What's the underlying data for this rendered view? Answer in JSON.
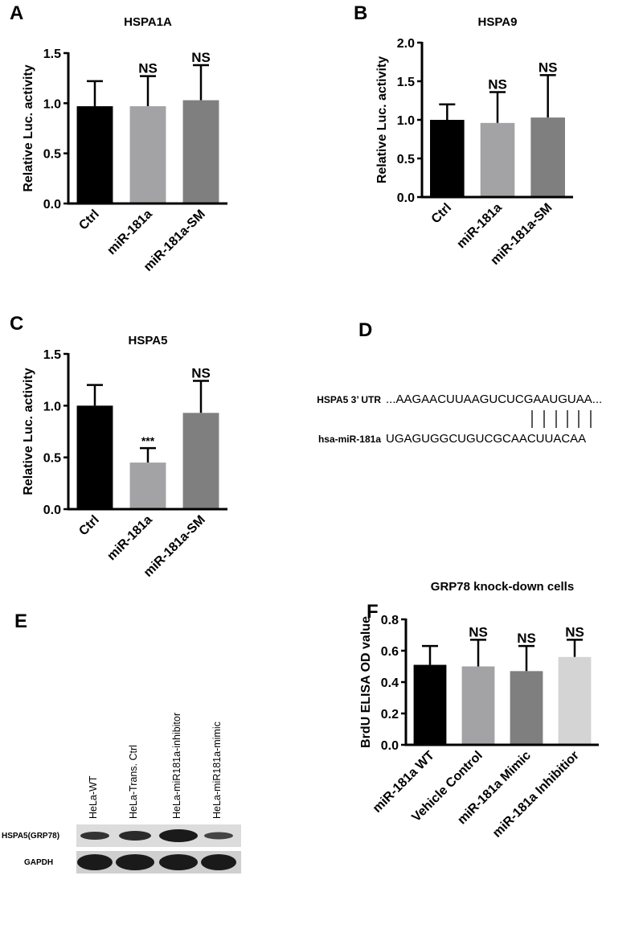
{
  "chart_data": [
    {
      "type": "bar",
      "panel": "A",
      "title": "HSPA1A",
      "ylabel": "Relative Luc. activity",
      "categories": [
        "Ctrl",
        "miR-181a",
        "miR-181a-SM"
      ],
      "values": [
        0.97,
        0.97,
        1.03
      ],
      "errors": [
        0.25,
        0.3,
        0.35
      ],
      "annotations": [
        null,
        "NS",
        "NS"
      ],
      "colors": [
        "#000000",
        "#a3a3a5",
        "#7f7f7f"
      ],
      "ylim": [
        0,
        1.5
      ],
      "yticks": [
        {
          "value": 0,
          "label": "0.0"
        },
        {
          "value": 0.5,
          "label": "0.5"
        },
        {
          "value": 1,
          "label": "1.0"
        },
        {
          "value": 1.5,
          "label": "1.5"
        }
      ]
    },
    {
      "type": "bar",
      "panel": "B",
      "title": "HSPA9",
      "ylabel": "Relative Luc. activity",
      "categories": [
        "Ctrl",
        "miR-181a",
        "miR-181a-SM"
      ],
      "values": [
        1.0,
        0.96,
        1.03
      ],
      "errors": [
        0.2,
        0.4,
        0.55
      ],
      "annotations": [
        null,
        "NS",
        "NS"
      ],
      "colors": [
        "#000000",
        "#a3a3a5",
        "#7f7f7f"
      ],
      "ylim": [
        0,
        2
      ],
      "yticks": [
        {
          "value": 0,
          "label": "0.0"
        },
        {
          "value": 0.5,
          "label": "0.5"
        },
        {
          "value": 1,
          "label": "1.0"
        },
        {
          "value": 1.5,
          "label": "1.5"
        },
        {
          "value": 2,
          "label": "2.0"
        }
      ]
    },
    {
      "type": "bar",
      "panel": "C",
      "title": "HSPA5",
      "ylabel": "Relative Luc. activity",
      "categories": [
        "Ctrl",
        "miR-181a",
        "miR-181a-SM"
      ],
      "values": [
        1.0,
        0.45,
        0.93
      ],
      "errors": [
        0.2,
        0.14,
        0.31
      ],
      "annotations": [
        null,
        "***",
        "NS"
      ],
      "colors": [
        "#000000",
        "#a3a3a5",
        "#7f7f7f"
      ],
      "ylim": [
        0,
        1.5
      ],
      "yticks": [
        {
          "value": 0,
          "label": "0.0"
        },
        {
          "value": 0.5,
          "label": "0.5"
        },
        {
          "value": 1,
          "label": "1.0"
        },
        {
          "value": 1.5,
          "label": "1.5"
        }
      ]
    },
    {
      "type": "bar",
      "panel": "F",
      "title": "GRP78 knock-down cells",
      "ylabel": "BrdU ELISA OD value",
      "categories": [
        "miR-181a WT",
        "Vehicle Control",
        "miR-181a Mimic",
        "miR-181a Inhibitior"
      ],
      "values": [
        0.51,
        0.5,
        0.47,
        0.56
      ],
      "errors": [
        0.12,
        0.17,
        0.16,
        0.11
      ],
      "annotations": [
        null,
        "NS",
        "NS",
        "NS"
      ],
      "colors": [
        "#000000",
        "#a3a3a5",
        "#7f7f7f",
        "#d4d4d4"
      ],
      "ylim": [
        0,
        0.8
      ],
      "yticks": [
        {
          "value": 0,
          "label": "0.0"
        },
        {
          "value": 0.2,
          "label": "0.2"
        },
        {
          "value": 0.4,
          "label": "0.4"
        },
        {
          "value": 0.6,
          "label": "0.6"
        },
        {
          "value": 0.8,
          "label": "0.8"
        }
      ]
    }
  ],
  "alignment": {
    "panel": "D",
    "rows": [
      {
        "label": "HSPA5 3’ UTR",
        "sequence": "...AAGAACUUAAGUCUCGAAUGUAA..."
      },
      {
        "label": "hsa-miR-181a",
        "sequence": "UGAGUGGCUGUCGCAACUUACAA"
      }
    ]
  },
  "blot": {
    "panel": "E",
    "lanes": [
      "HeLa-WT",
      "HeLa-Trans. Ctrl",
      "HeLa-miR181a-inhibitor",
      "HeLa-miR181a-mimic"
    ],
    "rows": [
      "HSPA5(GRP78)",
      "GAPDH"
    ]
  }
}
